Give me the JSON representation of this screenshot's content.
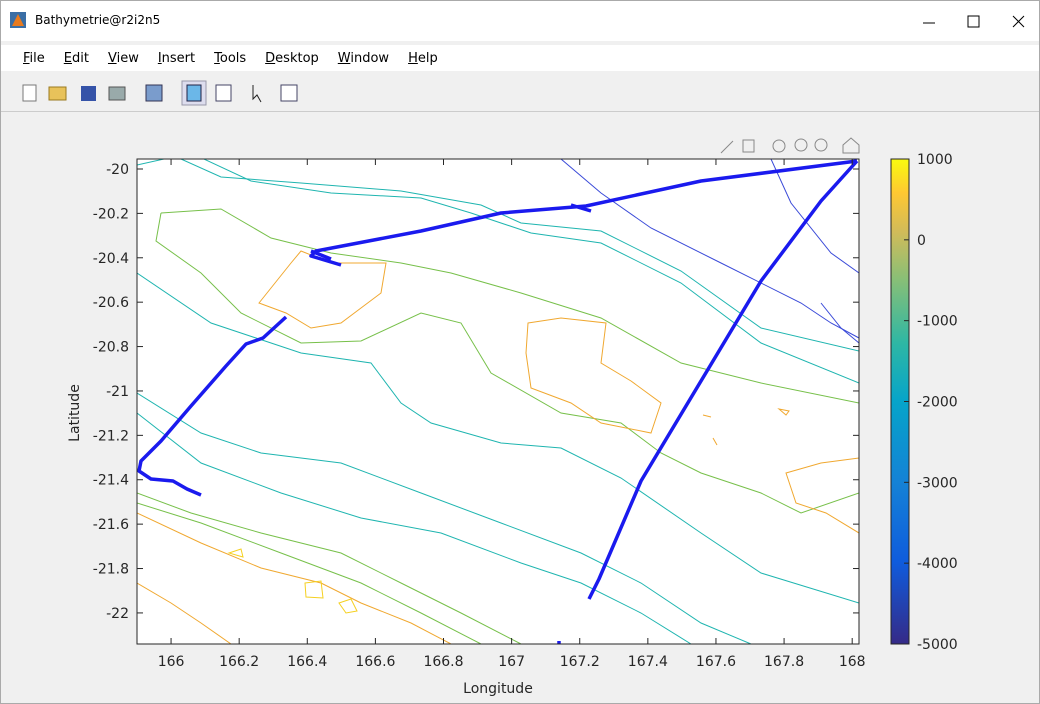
{
  "window": {
    "title": "Bathymetrie@r2i2n5"
  },
  "menu": [
    "File",
    "Edit",
    "View",
    "Insert",
    "Tools",
    "Desktop",
    "Window",
    "Help"
  ],
  "chart_data": {
    "type": "contour",
    "xlabel": "Longitude",
    "ylabel": "Latitude",
    "xlim": [
      165.9,
      168.02
    ],
    "ylim": [
      -22.14,
      -19.955
    ],
    "xticks": [
      166,
      166.2,
      166.4,
      166.6,
      166.8,
      167,
      167.2,
      167.4,
      167.6,
      167.8,
      168
    ],
    "yticks": [
      -20,
      -20.2,
      -20.4,
      -20.6,
      -20.8,
      -21,
      -21.2,
      -21.4,
      -21.6,
      -21.8,
      -22
    ],
    "colorbar": {
      "clim": [
        -5000,
        1000
      ],
      "ticks": [
        1000,
        0,
        -1000,
        -2000,
        -3000,
        -4000,
        -5000
      ]
    }
  }
}
